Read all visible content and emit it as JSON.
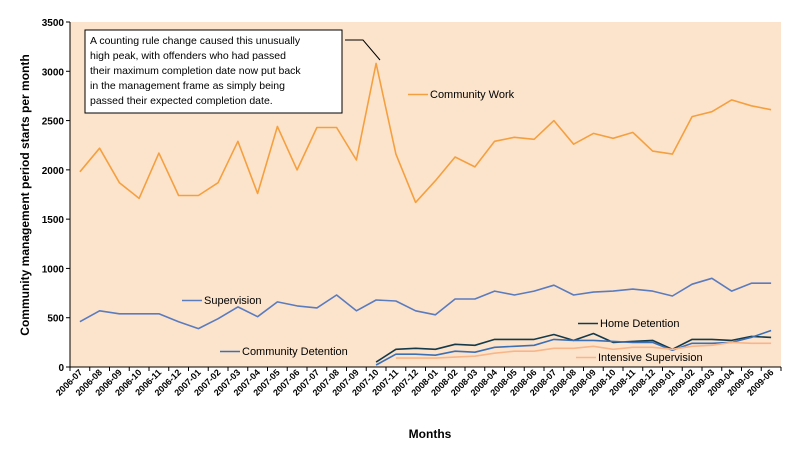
{
  "chart_data": {
    "type": "line",
    "xlabel": "Months",
    "ylabel": "Community management period starts per month",
    "ylim": [
      0,
      3500
    ],
    "yticks": [
      0,
      500,
      1000,
      1500,
      2000,
      2500,
      3000,
      3500
    ],
    "grid": false,
    "background": "#fce4cc",
    "categories": [
      "2006-07",
      "2006-08",
      "2006-09",
      "2006-10",
      "2006-11",
      "2006-12",
      "2007-01",
      "2007-02",
      "2007-03",
      "2007-04",
      "2007-05",
      "2007-06",
      "2007-07",
      "2007-08",
      "2007-09",
      "2007-10",
      "2007-11",
      "2007-12",
      "2008-01",
      "2008-02",
      "2008-03",
      "2008-04",
      "2008-05",
      "2008-06",
      "2008-07",
      "2008-08",
      "2008-09",
      "2008-10",
      "2008-11",
      "2008-12",
      "2009-01",
      "2009-02",
      "2009-03",
      "2009-04",
      "2009-05",
      "2009-06"
    ],
    "series": [
      {
        "name": "Community Work",
        "color": "#f5a040",
        "values": [
          1980,
          2220,
          1870,
          1710,
          2170,
          1740,
          1740,
          1870,
          2290,
          1760,
          2440,
          2000,
          2430,
          2430,
          2100,
          3080,
          2160,
          1670,
          1890,
          2130,
          2030,
          2290,
          2330,
          2310,
          2500,
          2260,
          2370,
          2320,
          2380,
          2190,
          2160,
          2540,
          2590,
          2710,
          2650,
          2610
        ]
      },
      {
        "name": "Supervision",
        "color": "#5b7bbf",
        "values": [
          460,
          570,
          540,
          540,
          540,
          460,
          390,
          490,
          610,
          510,
          660,
          620,
          600,
          730,
          570,
          680,
          670,
          570,
          530,
          690,
          690,
          770,
          730,
          770,
          830,
          730,
          760,
          770,
          790,
          770,
          720,
          840,
          900,
          770,
          850,
          850
        ]
      },
      {
        "name": "Home Detention",
        "color": "#153a4a",
        "values": [
          null,
          null,
          null,
          null,
          null,
          null,
          null,
          null,
          null,
          null,
          null,
          null,
          null,
          null,
          null,
          50,
          180,
          190,
          180,
          230,
          220,
          280,
          280,
          280,
          330,
          270,
          340,
          250,
          260,
          270,
          180,
          280,
          280,
          270,
          310,
          300
        ]
      },
      {
        "name": "Community Detention",
        "color": "#3d6fb5",
        "values": [
          null,
          null,
          null,
          null,
          null,
          null,
          null,
          null,
          null,
          null,
          null,
          null,
          null,
          null,
          null,
          20,
          130,
          130,
          120,
          160,
          150,
          200,
          210,
          220,
          280,
          270,
          270,
          260,
          250,
          250,
          170,
          240,
          240,
          250,
          300,
          370
        ]
      },
      {
        "name": "Intensive Supervision",
        "color": "#f8b58a",
        "values": [
          null,
          null,
          null,
          null,
          null,
          null,
          null,
          null,
          null,
          null,
          null,
          null,
          null,
          null,
          null,
          null,
          90,
          90,
          90,
          100,
          110,
          140,
          160,
          160,
          190,
          190,
          210,
          180,
          200,
          200,
          180,
          210,
          220,
          250,
          240,
          240
        ]
      }
    ],
    "annotation": {
      "lines": [
        "A counting rule change caused this unusually",
        "high peak, with offenders who had passed",
        "their maximum completion date now put back",
        "in the management frame as simply being",
        "passed their expected completion date."
      ],
      "points_to": "2007-10"
    }
  }
}
